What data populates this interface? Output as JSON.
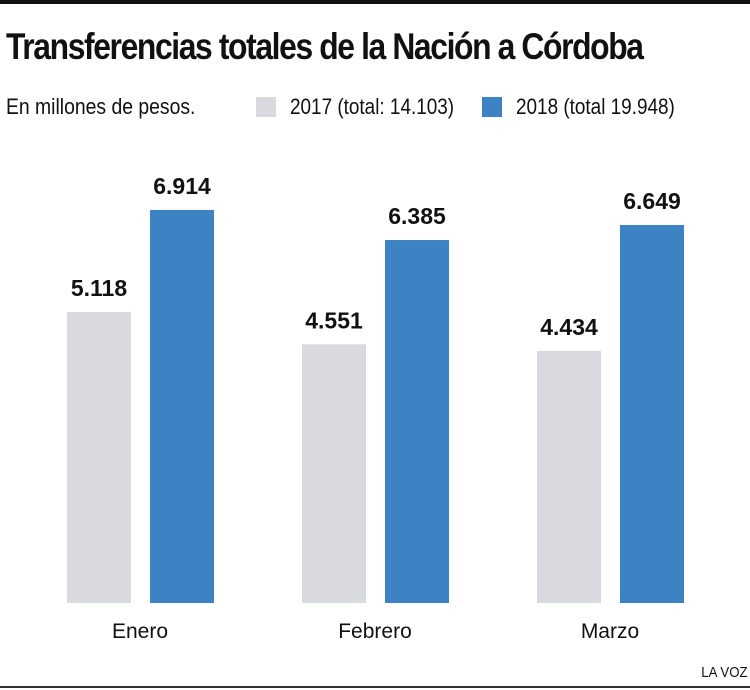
{
  "chart_data": {
    "type": "bar",
    "title": "Transferencias totales de la Nación a Córdoba",
    "subtitle": "En millones de pesos.",
    "categories": [
      "Enero",
      "Febrero",
      "Marzo"
    ],
    "series": [
      {
        "name": "2017 (total: 14.103)",
        "color": "#d9dadf",
        "values": [
          5.118,
          4.551,
          4.434
        ],
        "labels": [
          "5.118",
          "4.551",
          "4.434"
        ]
      },
      {
        "name": "2018 (total 19.948)",
        "color": "#3d83c3",
        "values": [
          6.914,
          6.385,
          6.649
        ],
        "labels": [
          "6.914",
          "6.385",
          "6.649"
        ]
      }
    ],
    "ylim": [
      0,
      7
    ],
    "grid": false,
    "legend": "top"
  },
  "credit": "LA VOZ"
}
